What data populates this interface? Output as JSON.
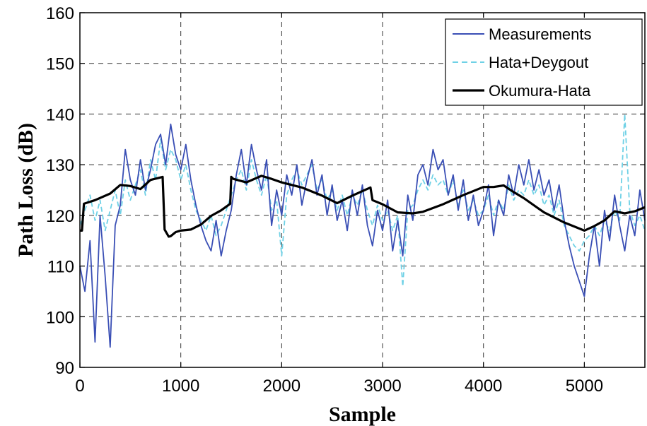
{
  "chart_data": {
    "type": "line",
    "title": "",
    "xlabel": "Sample",
    "ylabel": "Path Loss (dB)",
    "xlim": [
      0,
      5600
    ],
    "ylim": [
      90,
      160
    ],
    "xticks": [
      0,
      1000,
      2000,
      3000,
      4000,
      5000
    ],
    "yticks": [
      90,
      100,
      110,
      120,
      130,
      140,
      150,
      160
    ],
    "grid": true,
    "legend_position": "top-right",
    "series": [
      {
        "name": "Measurements",
        "color": "#3a4fb5",
        "style": "solid",
        "x": [
          0,
          50,
          100,
          150,
          200,
          250,
          300,
          350,
          400,
          450,
          500,
          550,
          600,
          650,
          700,
          750,
          800,
          850,
          900,
          950,
          1000,
          1050,
          1100,
          1150,
          1200,
          1250,
          1300,
          1350,
          1400,
          1450,
          1500,
          1550,
          1600,
          1650,
          1700,
          1750,
          1800,
          1850,
          1900,
          1950,
          2000,
          2050,
          2100,
          2150,
          2200,
          2250,
          2300,
          2350,
          2400,
          2450,
          2500,
          2550,
          2600,
          2650,
          2700,
          2750,
          2800,
          2850,
          2900,
          2950,
          3000,
          3050,
          3100,
          3150,
          3200,
          3250,
          3300,
          3350,
          3400,
          3450,
          3500,
          3550,
          3600,
          3650,
          3700,
          3750,
          3800,
          3850,
          3900,
          3950,
          4000,
          4050,
          4100,
          4150,
          4200,
          4250,
          4300,
          4350,
          4400,
          4450,
          4500,
          4550,
          4600,
          4650,
          4700,
          4750,
          4800,
          4850,
          4900,
          4950,
          5000,
          5050,
          5100,
          5150,
          5200,
          5250,
          5300,
          5350,
          5400,
          5450,
          5500,
          5550,
          5600
        ],
        "y": [
          110,
          105,
          115,
          95,
          120,
          108,
          94,
          118,
          122,
          133,
          127,
          124,
          131,
          125,
          129,
          134,
          136,
          130,
          138,
          132,
          129,
          134,
          127,
          122,
          118,
          115,
          113,
          119,
          112,
          117,
          121,
          128,
          133,
          126,
          134,
          129,
          125,
          131,
          118,
          125,
          120,
          128,
          124,
          130,
          122,
          127,
          131,
          124,
          128,
          120,
          126,
          119,
          123,
          117,
          125,
          120,
          126,
          118,
          114,
          121,
          117,
          123,
          113,
          119,
          112,
          124,
          119,
          128,
          130,
          126,
          133,
          129,
          131,
          124,
          128,
          121,
          127,
          119,
          124,
          118,
          121,
          126,
          116,
          123,
          120,
          128,
          124,
          130,
          126,
          131,
          125,
          129,
          124,
          127,
          121,
          126,
          119,
          114,
          110,
          107,
          104,
          112,
          118,
          110,
          121,
          115,
          124,
          118,
          113,
          120,
          116,
          125,
          119
        ]
      },
      {
        "name": "Hata+Deygout",
        "color": "#6fd1e6",
        "style": "dashed",
        "x": [
          0,
          50,
          100,
          150,
          200,
          250,
          300,
          350,
          400,
          450,
          500,
          550,
          600,
          650,
          700,
          750,
          800,
          850,
          900,
          950,
          1000,
          1050,
          1100,
          1150,
          1200,
          1250,
          1300,
          1350,
          1400,
          1450,
          1500,
          1550,
          1600,
          1650,
          1700,
          1750,
          1800,
          1850,
          1900,
          1950,
          2000,
          2050,
          2100,
          2150,
          2200,
          2250,
          2300,
          2350,
          2400,
          2450,
          2500,
          2550,
          2600,
          2650,
          2700,
          2750,
          2800,
          2850,
          2900,
          2950,
          3000,
          3050,
          3100,
          3150,
          3200,
          3250,
          3300,
          3350,
          3400,
          3450,
          3500,
          3550,
          3600,
          3650,
          3700,
          3750,
          3800,
          3850,
          3900,
          3950,
          4000,
          4050,
          4100,
          4150,
          4200,
          4250,
          4300,
          4350,
          4400,
          4450,
          4500,
          4550,
          4600,
          4650,
          4700,
          4750,
          4800,
          4850,
          4900,
          4950,
          5000,
          5050,
          5100,
          5150,
          5200,
          5250,
          5300,
          5350,
          5400,
          5450,
          5500,
          5550,
          5600
        ],
        "y": [
          118,
          121,
          124,
          119,
          123,
          117,
          121,
          125,
          120,
          127,
          123,
          126,
          129,
          124,
          131,
          127,
          135,
          129,
          133,
          131,
          127,
          130,
          125,
          121,
          119,
          117,
          120,
          116,
          118,
          121,
          124,
          127,
          129,
          125,
          131,
          127,
          124,
          128,
          121,
          123,
          112,
          124,
          127,
          129,
          126,
          128,
          130,
          125,
          127,
          123,
          125,
          121,
          124,
          120,
          124,
          122,
          125,
          121,
          118,
          122,
          119,
          121,
          117,
          120,
          106,
          121,
          122,
          125,
          127,
          125,
          128,
          126,
          127,
          124,
          127,
          122,
          125,
          121,
          123,
          120,
          121,
          124,
          120,
          123,
          121,
          126,
          123,
          125,
          124,
          127,
          124,
          126,
          122,
          124,
          120,
          123,
          118,
          116,
          114,
          113,
          115,
          116,
          118,
          116,
          119,
          117,
          121,
          119,
          140,
          121,
          118,
          120,
          117
        ]
      },
      {
        "name": "Okumura-Hata",
        "color": "#000000",
        "style": "solid",
        "x": [
          0,
          20,
          40,
          150,
          300,
          400,
          450,
          500,
          600,
          700,
          820,
          840,
          880,
          900,
          950,
          1000,
          1100,
          1200,
          1300,
          1400,
          1490,
          1500,
          1520,
          1650,
          1800,
          1900,
          2000,
          2200,
          2400,
          2550,
          2700,
          2880,
          2900,
          3000,
          3150,
          3300,
          3400,
          3600,
          3800,
          4000,
          4100,
          4200,
          4300,
          4400,
          4600,
          4800,
          5000,
          5100,
          5200,
          5300,
          5400,
          5500,
          5600
        ],
        "y": [
          117,
          117,
          122.3,
          123,
          124.3,
          126,
          125.9,
          125.8,
          125.2,
          127,
          127.6,
          117.2,
          115.8,
          115.9,
          116.7,
          117,
          117.2,
          118.2,
          119.9,
          121,
          122.3,
          127.6,
          127.2,
          126.5,
          127.8,
          127.2,
          126.5,
          125.5,
          123.9,
          122.4,
          123.9,
          125.5,
          123,
          122.2,
          120.6,
          120.4,
          120.7,
          122.2,
          124,
          125.6,
          125.6,
          125.9,
          124.6,
          123.4,
          120.6,
          118.6,
          117,
          117.9,
          119,
          120.8,
          120.4,
          120.8,
          121.6
        ]
      }
    ]
  }
}
